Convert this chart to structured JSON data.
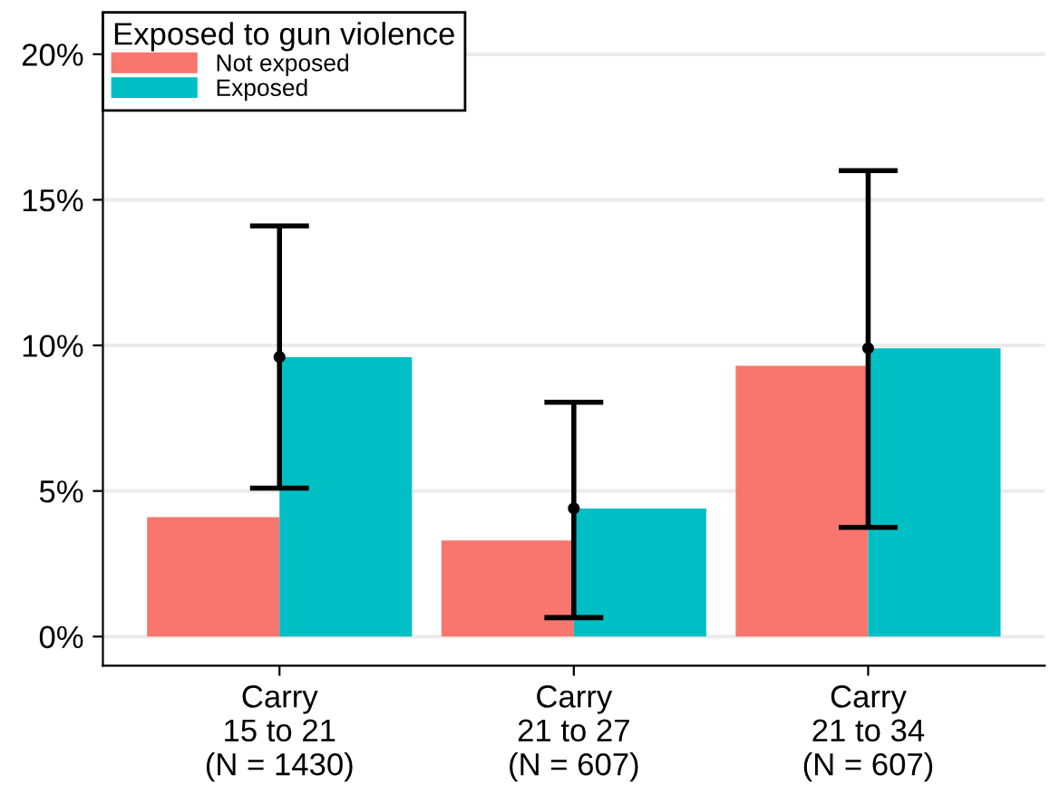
{
  "chart_data": {
    "type": "bar",
    "categories": [
      "Carry\n15 to 21\n(N = 1430)",
      "Carry\n21 to 27\n(N = 607)",
      "Carry\n21 to 34\n(N = 607)"
    ],
    "legend_title": "Exposed to gun violence",
    "series": [
      {
        "name": "Not exposed",
        "color": "#f8766d",
        "values": [
          4.1,
          3.3,
          9.3
        ]
      },
      {
        "name": "Exposed",
        "color": "#00bfc4",
        "values": [
          9.6,
          4.4,
          9.9
        ]
      },
      {
        "type": "scatter",
        "color": "#000000",
        "marker": "circle",
        "x": [
          "Carry\n15 to 21\n(N = 1430)",
          "Carry\n21 to 27\n(N = 607)",
          "Carry\n21 to 34\n(N = 607)"
        ],
        "values": [
          9.6,
          4.4,
          9.9
        ],
        "errors": [
          [
            5.1,
            14.1
          ],
          [
            0.65,
            8.05
          ],
          [
            3.75,
            16.0
          ]
        ]
      }
    ],
    "ylim": [
      -1,
      21
    ],
    "yticks": [
      {
        "value": 0,
        "label": "0%"
      },
      {
        "value": 5,
        "label": "5%"
      },
      {
        "value": 10,
        "label": "10%"
      },
      {
        "value": 15,
        "label": "15%"
      },
      {
        "value": 20,
        "label": "20%"
      }
    ],
    "grid": "y",
    "legend": "top left"
  }
}
